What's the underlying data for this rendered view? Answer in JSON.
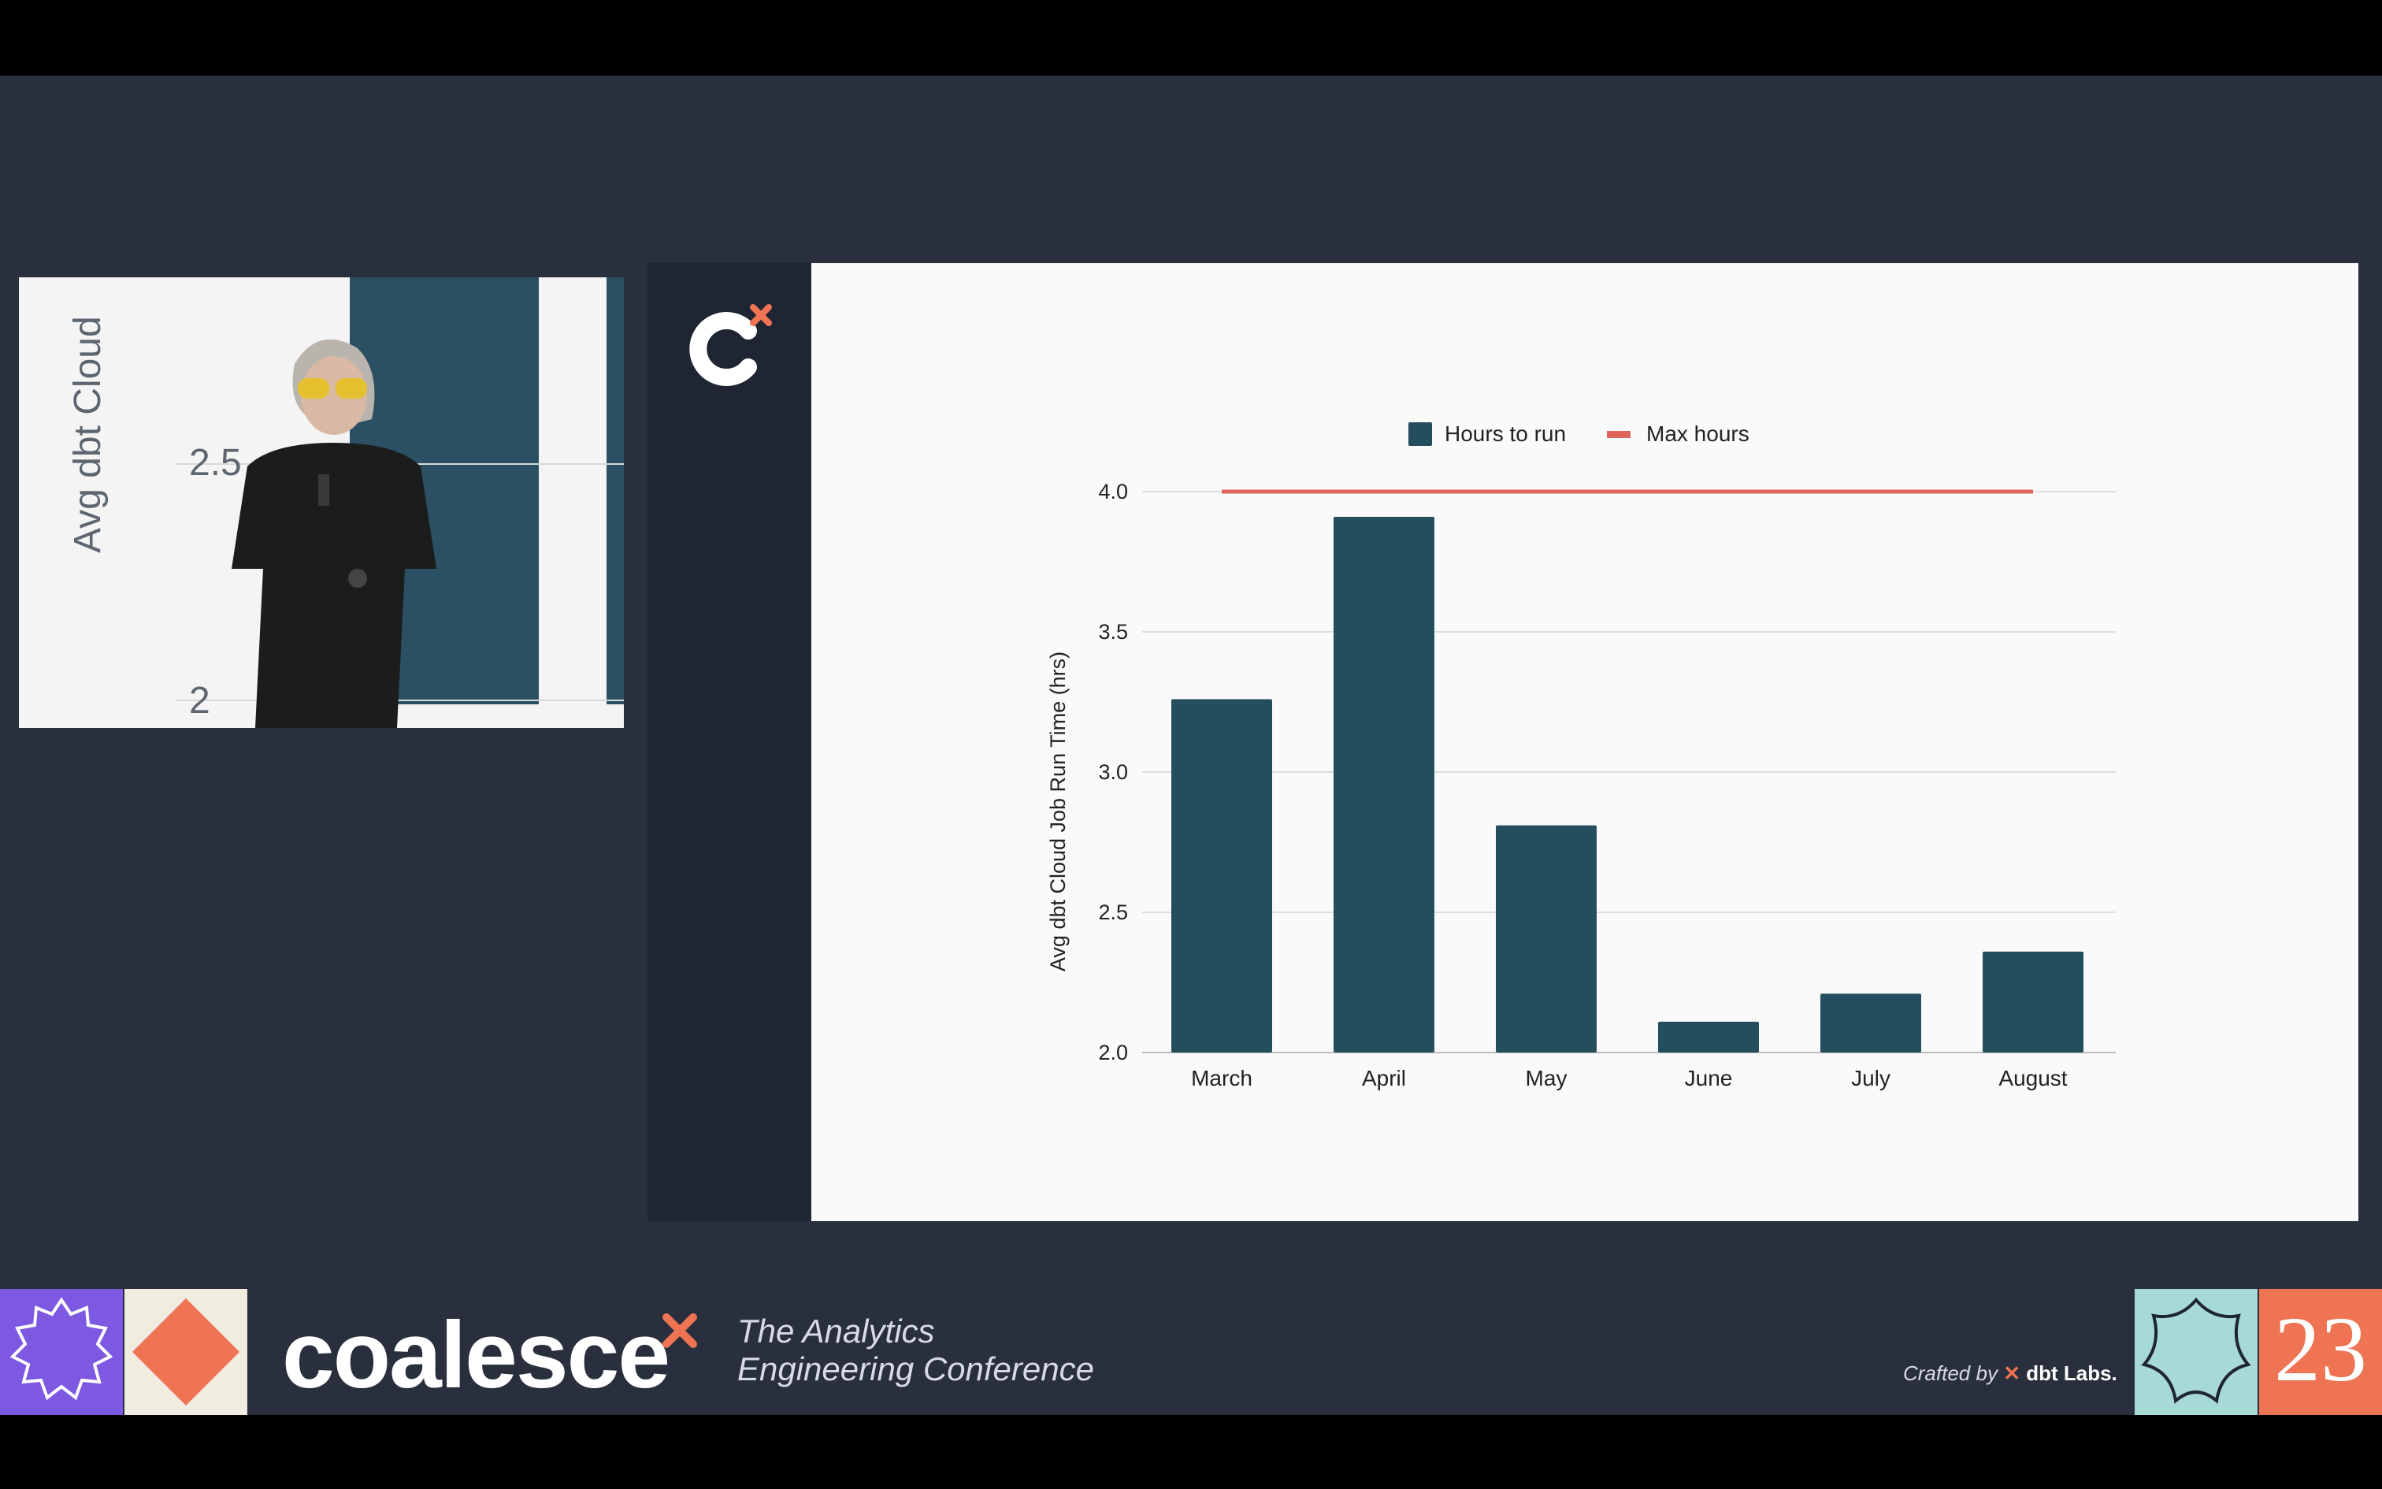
{
  "camera": {
    "ylabel_fragment": "Avg dbt Cloud",
    "ticks": [
      "2.5",
      "2"
    ]
  },
  "chart_data": {
    "type": "bar",
    "categories": [
      "March",
      "April",
      "May",
      "June",
      "July",
      "August"
    ],
    "series": [
      {
        "name": "Hours to run",
        "kind": "bar",
        "color": "#244e5d",
        "values": [
          3.26,
          3.91,
          2.81,
          2.11,
          2.21,
          2.36
        ]
      },
      {
        "name": "Max hours",
        "kind": "line",
        "color": "#e0645a",
        "values": [
          4.0,
          4.0,
          4.0,
          4.0,
          4.0,
          4.0
        ]
      }
    ],
    "ylabel": "Avg dbt Cloud Job Run Time (hrs)",
    "xlabel": "",
    "ylim": [
      2.0,
      4.0
    ],
    "yticks": [
      "2.0",
      "2.5",
      "3.0",
      "3.5",
      "4.0"
    ],
    "grid": true,
    "legend": "top-center"
  },
  "footer": {
    "brand": "coalesce",
    "tagline_line1": "The Analytics",
    "tagline_line2": "Engineering Conference",
    "crafted_by": "Crafted by",
    "crafted_brand": "dbt Labs.",
    "year": "23"
  },
  "colors": {
    "background": "#2a2f3e",
    "accent_orange": "#ee7453",
    "accent_purple": "#7d58e0",
    "accent_teal": "#a7d9d6"
  }
}
